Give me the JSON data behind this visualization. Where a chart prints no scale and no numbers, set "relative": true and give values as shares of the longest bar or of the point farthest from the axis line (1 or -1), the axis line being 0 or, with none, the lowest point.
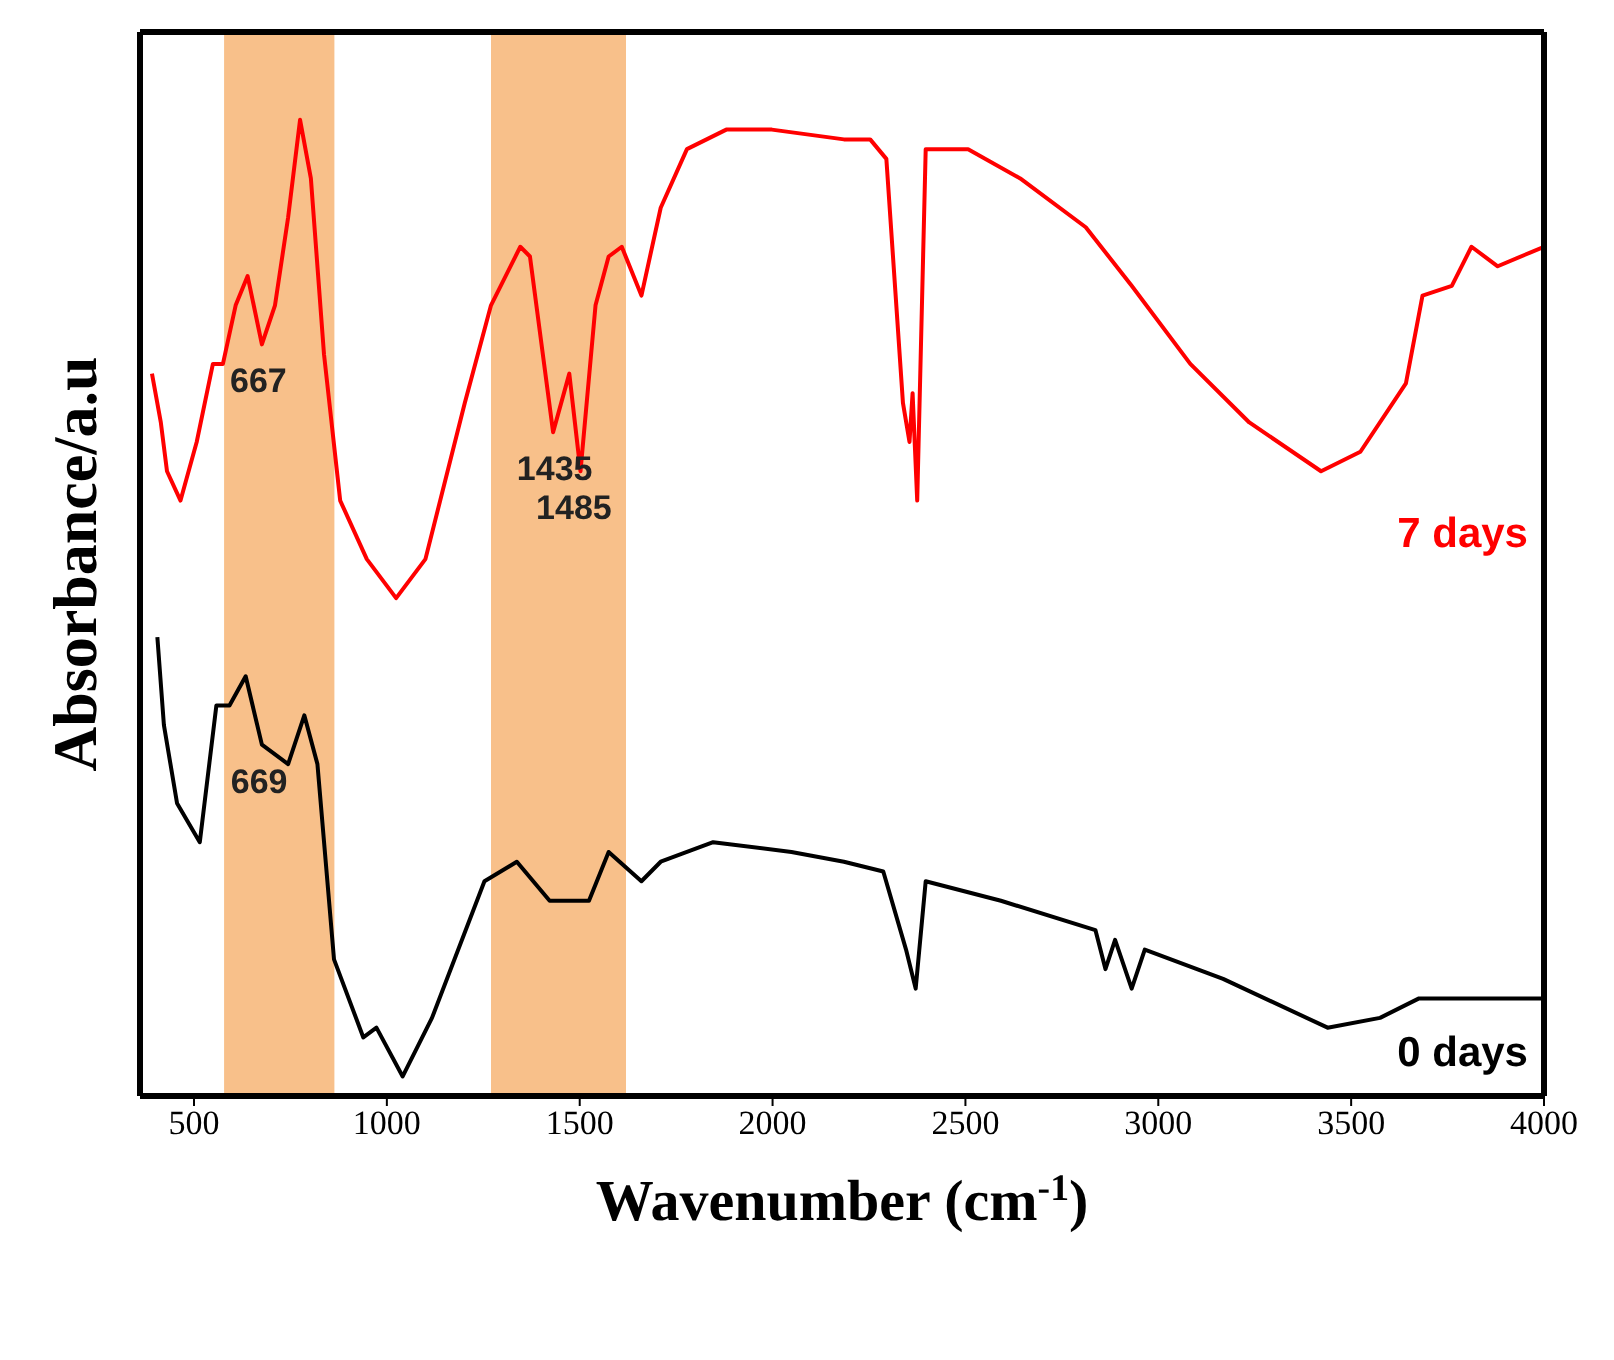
{
  "chart_data": {
    "type": "line",
    "relative": true,
    "xlabel": "Wavenumber (cm$^{-1}$)",
    "ylabel": "Absorbance/a.u",
    "xlim": [
      360,
      4000
    ],
    "xticks": [
      500,
      1000,
      1500,
      2000,
      2500,
      3000,
      3500,
      4000
    ],
    "legend": false,
    "grid": false,
    "marker": "none",
    "line_style": "solid",
    "bands": [
      {
        "axis": "x",
        "from": 578,
        "to": 864,
        "color": "#f8c08a"
      },
      {
        "axis": "x",
        "from": 1270,
        "to": 1620,
        "color": "#f8c08a"
      }
    ],
    "annotations": [
      {
        "text": "667",
        "x": 667,
        "y": 0.77
      },
      {
        "text": "1435",
        "x": 1435,
        "y": 0.68
      },
      {
        "text": "1485",
        "x": 1485,
        "y": 0.64
      },
      {
        "text": "669",
        "x": 669,
        "y": 0.36
      }
    ],
    "series": [
      {
        "name": "7 days",
        "color": "#ff0000",
        "x": [
          391,
          414,
          430,
          465,
          507,
          549,
          575,
          608,
          639,
          676,
          710,
          744,
          775,
          803,
          837,
          879,
          948,
          1024,
          1100,
          1202,
          1270,
          1346,
          1371,
          1431,
          1473,
          1502,
          1541,
          1575,
          1609,
          1660,
          1710,
          1778,
          1880,
          1998,
          2185,
          2253,
          2295,
          2338,
          2355,
          2363,
          2375,
          2397,
          2507,
          2642,
          2812,
          2931,
          3083,
          3236,
          3422,
          3524,
          3642,
          3685,
          3761,
          3812,
          3880,
          4000
        ],
        "values": [
          0.74,
          0.69,
          0.64,
          0.61,
          0.67,
          0.75,
          0.75,
          0.81,
          0.84,
          0.77,
          0.81,
          0.9,
          1.0,
          0.94,
          0.76,
          0.61,
          0.55,
          0.51,
          0.55,
          0.71,
          0.81,
          0.87,
          0.86,
          0.68,
          0.74,
          0.64,
          0.81,
          0.86,
          0.87,
          0.82,
          0.91,
          0.97,
          0.99,
          0.99,
          0.98,
          0.98,
          0.96,
          0.71,
          0.67,
          0.72,
          0.61,
          0.97,
          0.97,
          0.94,
          0.89,
          0.83,
          0.75,
          0.69,
          0.64,
          0.66,
          0.73,
          0.82,
          0.83,
          0.87,
          0.85,
          0.87
        ]
      },
      {
        "name": "0 days",
        "color": "#000000",
        "x": [
          405,
          422,
          456,
          515,
          558,
          592,
          634,
          676,
          744,
          786,
          820,
          863,
          939,
          973,
          1041,
          1117,
          1253,
          1337,
          1422,
          1524,
          1575,
          1660,
          1710,
          1846,
          2049,
          2185,
          2287,
          2346,
          2371,
          2397,
          2592,
          2837,
          2863,
          2888,
          2931,
          2965,
          3168,
          3439,
          3575,
          3676,
          3778,
          3880,
          4000
        ],
        "values": [
          0.47,
          0.38,
          0.3,
          0.26,
          0.4,
          0.4,
          0.43,
          0.36,
          0.34,
          0.39,
          0.34,
          0.14,
          0.06,
          0.07,
          0.02,
          0.08,
          0.22,
          0.24,
          0.2,
          0.2,
          0.25,
          0.22,
          0.24,
          0.26,
          0.25,
          0.24,
          0.23,
          0.15,
          0.11,
          0.22,
          0.2,
          0.17,
          0.13,
          0.16,
          0.11,
          0.15,
          0.12,
          0.07,
          0.08,
          0.1,
          0.1,
          0.1,
          0.1
        ]
      }
    ]
  }
}
